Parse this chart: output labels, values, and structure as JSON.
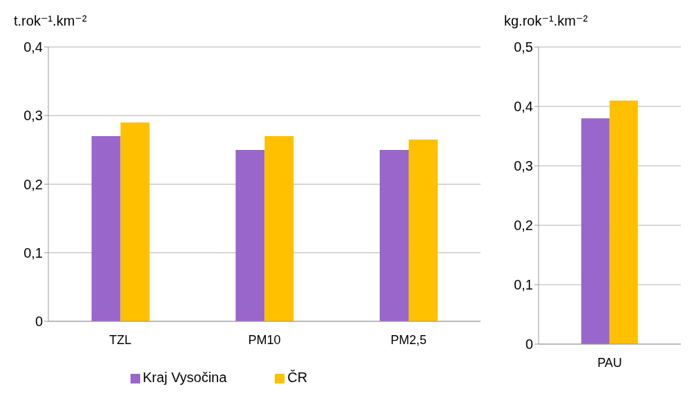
{
  "chart_data": [
    {
      "type": "bar",
      "ylabel": "t.rok⁻¹.km⁻²",
      "categories": [
        "TZL",
        "PM10",
        "PM2,5"
      ],
      "series": [
        {
          "name": "Kraj Vysočina",
          "color": "#9966cc",
          "values": [
            0.27,
            0.25,
            0.25
          ]
        },
        {
          "name": "ČR",
          "color": "#ffc000",
          "values": [
            0.29,
            0.27,
            0.265
          ]
        }
      ],
      "ylim": [
        0,
        0.4
      ],
      "yticks": [
        {
          "value": 0,
          "label": "0"
        },
        {
          "value": 0.1,
          "label": "0,1"
        },
        {
          "value": 0.2,
          "label": "0,2"
        },
        {
          "value": 0.3,
          "label": "0,3"
        },
        {
          "value": 0.4,
          "label": "0,4"
        }
      ],
      "grid": "y",
      "legend": "bottom"
    },
    {
      "type": "bar",
      "ylabel": "kg.rok⁻¹.km⁻²",
      "categories": [
        "PAU"
      ],
      "series": [
        {
          "color": "#9966cc",
          "values": [
            0.38
          ]
        },
        {
          "color": "#ffc000",
          "values": [
            0.41
          ]
        }
      ],
      "ylim": [
        0,
        0.5
      ],
      "yticks": [
        {
          "value": 0,
          "label": "0"
        },
        {
          "value": 0.1,
          "label": "0,1"
        },
        {
          "value": 0.2,
          "label": "0,2"
        },
        {
          "value": 0.3,
          "label": "0,3"
        },
        {
          "value": 0.4,
          "label": "0,4"
        },
        {
          "value": 0.5,
          "label": "0,5"
        }
      ],
      "grid": "y"
    }
  ]
}
